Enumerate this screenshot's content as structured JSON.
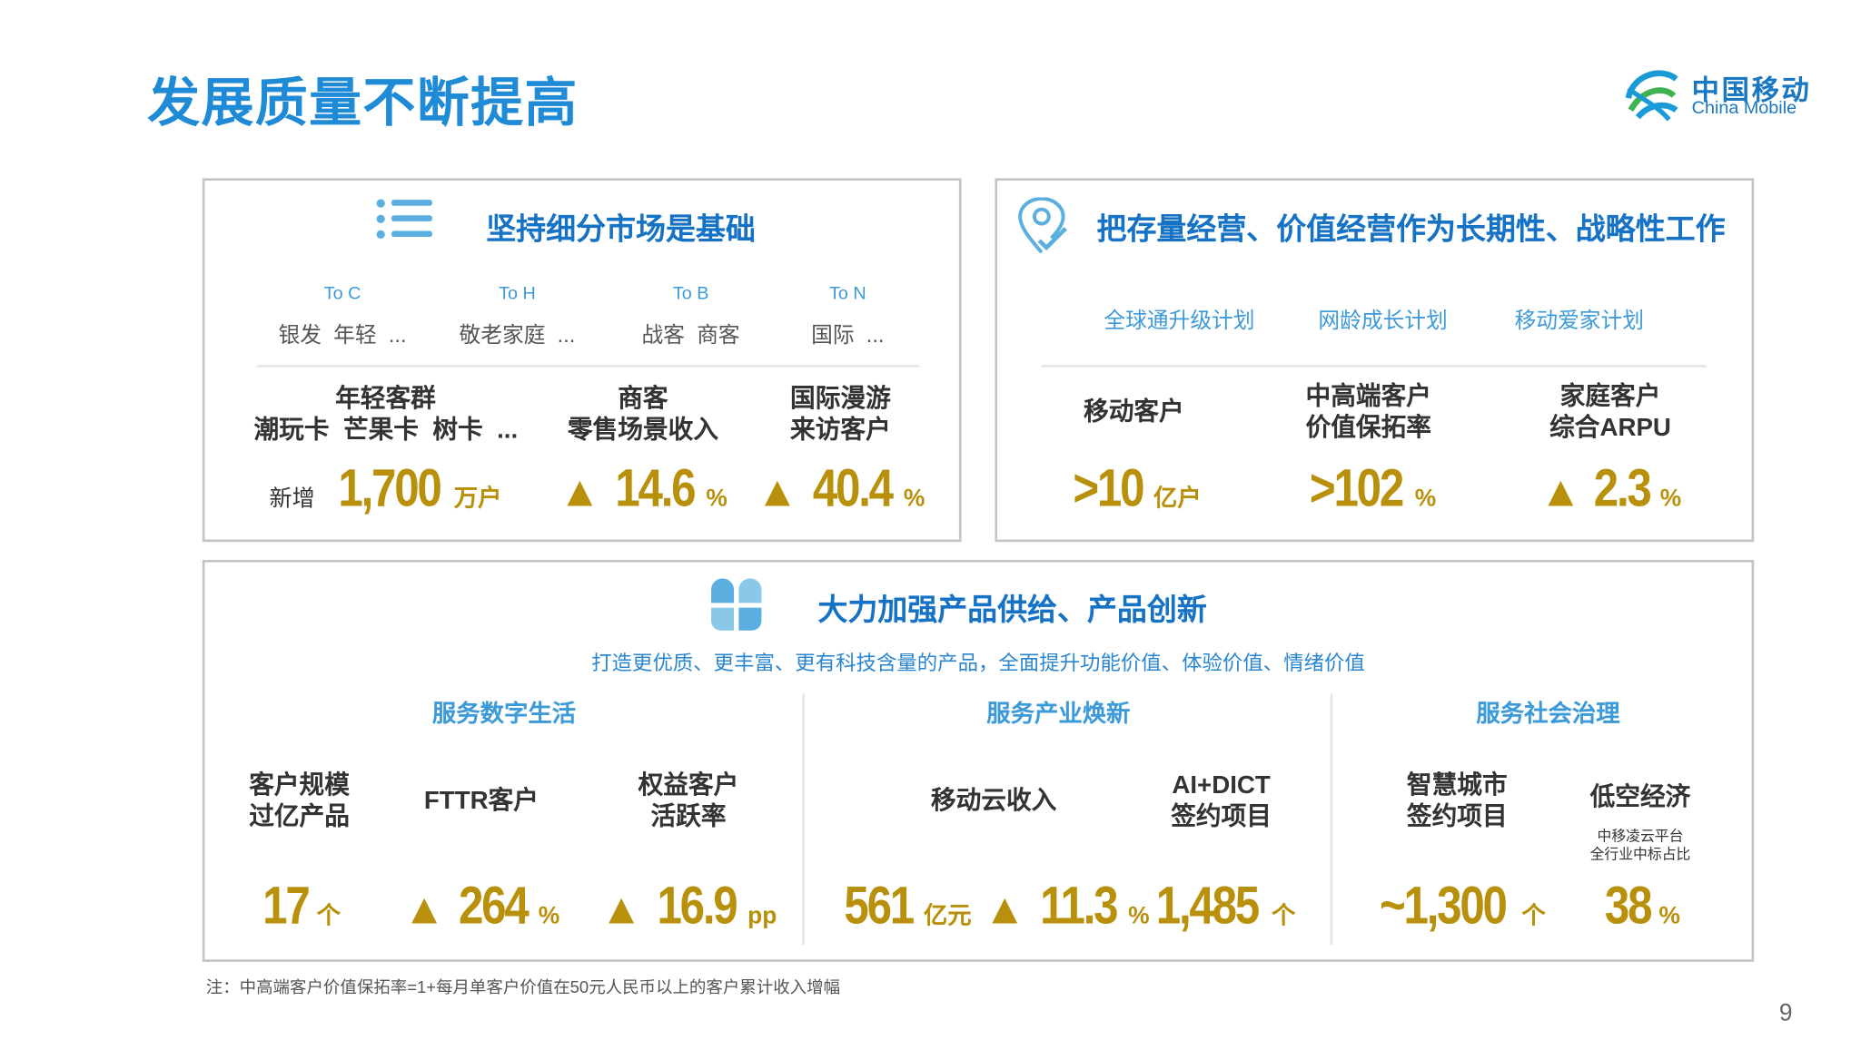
{
  "header": {
    "title": "发展质量不断提高",
    "logo_cn": "中国移动",
    "logo_en": "China Mobile"
  },
  "panels": [
    {
      "title": "坚持细分市场是基础",
      "segments": [
        {
          "label": "To C",
          "items": "银发  年轻  ..."
        },
        {
          "label": "To H",
          "items": "敬老家庭  ..."
        },
        {
          "label": "To B",
          "items": "战客  商客"
        },
        {
          "label": "To N",
          "items": "国际  ..."
        }
      ],
      "metrics": [
        {
          "label": [
            "年轻客群",
            "潮玩卡  芒果卡  树卡  ..."
          ],
          "prefix": "新增",
          "value": "1,700",
          "unit": "万户"
        },
        {
          "label": [
            "商客",
            "零售场景收入"
          ],
          "arrow": "▲",
          "value": "14.6",
          "unit": "%"
        },
        {
          "label": [
            "国际漫游",
            "来访客户"
          ],
          "arrow": "▲",
          "value": "40.4",
          "unit": "%"
        }
      ]
    },
    {
      "title": "把存量经营、价值经营作为长期性、战略性工作",
      "segments": [
        {
          "items": "全球通升级计划"
        },
        {
          "items": "网龄成长计划"
        },
        {
          "items": "移动爱家计划"
        }
      ],
      "metrics": [
        {
          "label": [
            "移动客户"
          ],
          "value": ">10",
          "unit": "亿户"
        },
        {
          "label": [
            "中高端客户",
            "价值保拓率"
          ],
          "value": ">102",
          "unit": "%"
        },
        {
          "label": [
            "家庭客户",
            "综合ARPU"
          ],
          "arrow": "▲",
          "value": "2.3",
          "unit": "%"
        }
      ]
    },
    {
      "title": "大力加强产品供给、产品创新",
      "subtitle": "打造更优质、更丰富、更有科技含量的产品，全面提升功能价值、体验价值、情绪价值",
      "groups": [
        {
          "title": "服务数字生活",
          "metrics": [
            {
              "label": [
                "客户规模",
                "过亿产品"
              ],
              "value": "17",
              "unit": "个"
            },
            {
              "label": [
                "FTTR客户"
              ],
              "arrow": "▲",
              "value": "264",
              "unit": "%"
            },
            {
              "label": [
                "权益客户",
                "活跃率"
              ],
              "arrow": "▲",
              "value": "16.9",
              "unit": "pp"
            }
          ]
        },
        {
          "title": "服务产业焕新",
          "metrics": [
            {
              "label": [
                "移动云收入"
              ],
              "value": "561",
              "unit": "亿元",
              "arrow_after": "▲",
              "value2": "11.3",
              "unit2": "%"
            },
            {
              "label": [
                "AI+DICT",
                "签约项目"
              ],
              "value": "1,485",
              "unit": "个"
            }
          ]
        },
        {
          "title": "服务社会治理",
          "metrics": [
            {
              "label": [
                "智慧城市",
                "签约项目"
              ],
              "value": "~1,300",
              "unit": "个"
            },
            {
              "label": [
                "低空经济"
              ],
              "note": [
                "中移凌云平台",
                "全行业中标占比"
              ],
              "value": "38",
              "unit": "%"
            }
          ]
        }
      ]
    }
  ],
  "footnote": "注：中高端客户价值保拓率=1+每月单客户价值在50元人民币以上的客户累计收入增幅",
  "page_number": "9"
}
